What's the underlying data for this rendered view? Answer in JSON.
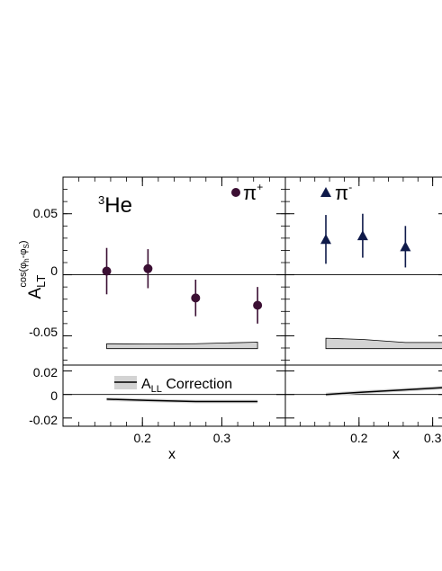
{
  "chart_data": {
    "type": "scatter",
    "xlabel": "x",
    "ylabel": {
      "base": "A",
      "sub": "LT",
      "sup": "cos(φ",
      "sup_h_sub": "h",
      "sup_mid": "-φ",
      "sup_s_sub": "S",
      "sup_end": ")"
    },
    "target_label": {
      "sup": "3",
      "base": "He"
    },
    "colors": {
      "pi_plus": "#3b0f33",
      "pi_minus": "#0f1a4a",
      "band": "#d3d3d3",
      "line": "#000000"
    },
    "top": {
      "ylim": [
        -0.074,
        0.08
      ],
      "yticks": [
        0.05,
        0,
        -0.05
      ],
      "ytick_labels": [
        "0.05",
        "0",
        "-0.05"
      ]
    },
    "bottom": {
      "ylim": [
        -0.027,
        0.025
      ],
      "yticks": [
        0.02,
        0,
        -0.02
      ],
      "ytick_labels": [
        "0.02",
        "0",
        "-0.02"
      ]
    },
    "left_xlim": [
      0.1,
      0.38
    ],
    "right_xlim": [
      0.1,
      0.32
    ],
    "xticks": [
      0.2,
      0.3
    ],
    "xtick_labels_left": [
      "0.2",
      "0.3"
    ],
    "xtick_labels_right": [
      "0.2",
      "0.3"
    ],
    "series": [
      {
        "name_base": "π",
        "name_sup": "+",
        "marker": "circle",
        "x": [
          0.155,
          0.207,
          0.267,
          0.345
        ],
        "y": [
          0.003,
          0.005,
          -0.019,
          -0.025
        ],
        "err": [
          0.019,
          0.016,
          0.015,
          0.015
        ],
        "sys_band": {
          "x": [
            0.155,
            0.207,
            0.267,
            0.345
          ],
          "low": [
            -0.0605,
            -0.0605,
            -0.0605,
            -0.0605
          ],
          "high": [
            -0.0565,
            -0.0568,
            -0.0565,
            -0.0552
          ]
        },
        "all_correction": {
          "x": [
            0.155,
            0.207,
            0.267,
            0.345
          ],
          "y": [
            -0.004,
            -0.005,
            -0.006,
            -0.006
          ],
          "band": 0.0015
        }
      },
      {
        "name_base": "π",
        "name_sup": "-",
        "marker": "triangle",
        "x": [
          0.155,
          0.205,
          0.263
        ],
        "y": [
          0.029,
          0.032,
          0.023
        ],
        "err": [
          0.02,
          0.018,
          0.017
        ],
        "sys_band": {
          "x": [
            0.155,
            0.205,
            0.263,
            0.32
          ],
          "low": [
            -0.0605,
            -0.0605,
            -0.0605,
            -0.0605
          ],
          "high": [
            -0.052,
            -0.053,
            -0.0555,
            -0.0555
          ]
        },
        "all_correction": {
          "x": [
            0.155,
            0.205,
            0.263,
            0.32
          ],
          "y": [
            0.0,
            0.002,
            0.004,
            0.006
          ],
          "band": 0.0015
        }
      }
    ],
    "legend": {
      "label_base": "A",
      "label_sub": "LL",
      "label_rest": " Correction"
    }
  }
}
